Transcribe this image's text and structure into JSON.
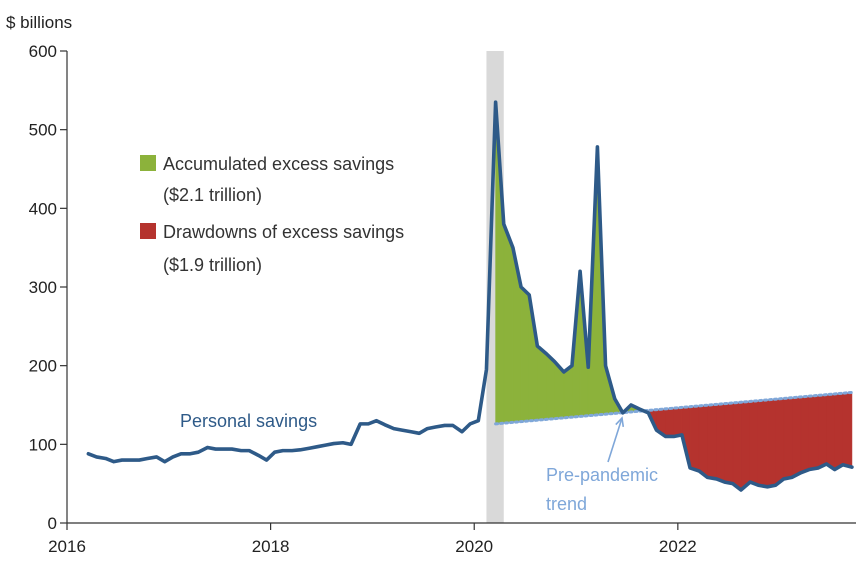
{
  "chart_data": {
    "type": "line",
    "ylabel": "$ billions",
    "xlim": [
      2016,
      2023.75
    ],
    "ylim": [
      0,
      600
    ],
    "y_ticks": [
      0,
      100,
      200,
      300,
      400,
      500,
      600
    ],
    "x_ticks": [
      2016,
      2018,
      2020,
      2022
    ],
    "recession_shading": [
      2020.12,
      2020.29
    ],
    "colors": {
      "savings": "#2E5A88",
      "trend": "#7FA7D9",
      "excess": "#8CB23B",
      "drawdown": "#B5332E",
      "recession": "#D9D9D9",
      "axis": "#333333"
    },
    "legend": [
      {
        "label": "Accumulated excess savings",
        "sublabel": "($2.1 trillion)",
        "color": "#8CB23B"
      },
      {
        "label": "Drawdowns of excess savings",
        "sublabel": "($1.9 trillion)",
        "color": "#B5332E"
      }
    ],
    "annotations": {
      "savings": "Personal savings",
      "trend_line1": "Pre-pandemic",
      "trend_line2": "trend"
    },
    "series": [
      {
        "name": "Personal savings",
        "x": [
          2016.21,
          2016.29,
          2016.38,
          2016.46,
          2016.54,
          2016.62,
          2016.71,
          2016.79,
          2016.88,
          2016.96,
          2017.04,
          2017.12,
          2017.21,
          2017.29,
          2017.38,
          2017.46,
          2017.54,
          2017.62,
          2017.71,
          2017.79,
          2017.88,
          2017.96,
          2018.04,
          2018.12,
          2018.21,
          2018.29,
          2018.38,
          2018.46,
          2018.54,
          2018.62,
          2018.71,
          2018.79,
          2018.88,
          2018.96,
          2019.04,
          2019.12,
          2019.21,
          2019.29,
          2019.38,
          2019.46,
          2019.54,
          2019.62,
          2019.71,
          2019.79,
          2019.88,
          2019.96,
          2020.04,
          2020.12,
          2020.21,
          2020.29,
          2020.38,
          2020.46,
          2020.54,
          2020.62,
          2020.71,
          2020.79,
          2020.88,
          2020.96,
          2021.04,
          2021.12,
          2021.21,
          2021.29,
          2021.38,
          2021.46,
          2021.54,
          2021.62,
          2021.71,
          2021.79,
          2021.88,
          2021.96,
          2022.04,
          2022.12,
          2022.21,
          2022.29,
          2022.38,
          2022.46,
          2022.54,
          2022.62,
          2022.71,
          2022.79,
          2022.88,
          2022.96,
          2023.04,
          2023.12,
          2023.21,
          2023.29,
          2023.38,
          2023.46,
          2023.54,
          2023.62,
          2023.71
        ],
        "y": [
          88,
          84,
          82,
          78,
          80,
          80,
          80,
          82,
          84,
          78,
          84,
          88,
          88,
          90,
          96,
          94,
          94,
          94,
          92,
          92,
          86,
          80,
          90,
          92,
          92,
          93,
          95,
          97,
          99,
          101,
          102,
          100,
          126,
          126,
          130,
          125,
          120,
          118,
          116,
          114,
          120,
          122,
          124,
          124,
          116,
          126,
          130,
          195,
          535,
          380,
          350,
          300,
          290,
          225,
          215,
          205,
          192,
          200,
          320,
          198,
          478,
          200,
          158,
          140,
          150,
          145,
          140,
          118,
          110,
          110,
          112,
          70,
          66,
          58,
          56,
          52,
          50,
          42,
          52,
          48,
          46,
          48,
          56,
          58,
          64,
          68,
          70,
          75,
          68,
          74,
          71
        ]
      },
      {
        "name": "Pre-pandemic trend",
        "x": [
          2020.21,
          2023.71
        ],
        "y": [
          126,
          166
        ]
      }
    ]
  }
}
